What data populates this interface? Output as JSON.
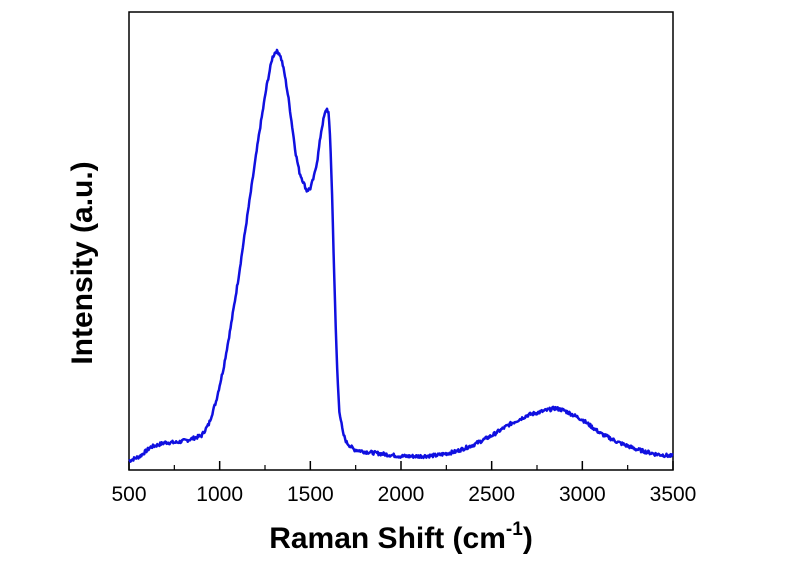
{
  "chart_data": {
    "type": "line",
    "title": "",
    "xlabel": "Raman Shift (cm",
    "xlabel_sup": "-1",
    "xlabel_suffix": ")",
    "ylabel": "Intensity (a.u.)",
    "xlim": [
      500,
      3500
    ],
    "ylim": [
      0,
      1.0
    ],
    "x_ticks": [
      500,
      1000,
      1500,
      2000,
      2500,
      3000,
      3500
    ],
    "x_tick_labels": [
      "500",
      "1000",
      "1500",
      "2000",
      "2500",
      "3000",
      "3500"
    ],
    "y_tick_labels_shown": false,
    "grid": false,
    "line_color": "#1010e0",
    "series": [
      {
        "x": [
          500,
          560,
          620,
          660,
          700,
          760,
          820,
          860,
          900,
          940,
          980,
          1020,
          1060,
          1100,
          1140,
          1180,
          1220,
          1260,
          1290,
          1310,
          1330,
          1345,
          1360,
          1380,
          1400,
          1420,
          1440,
          1460,
          1480,
          1500,
          1520,
          1540,
          1560,
          1575,
          1590,
          1600,
          1610,
          1620,
          1630,
          1640,
          1650,
          1660,
          1680,
          1700,
          1740,
          1800,
          1900,
          2000,
          2100,
          2200,
          2300,
          2400,
          2500,
          2600,
          2700,
          2800,
          2850,
          2900,
          3000,
          3100,
          3200,
          3300,
          3400,
          3500
        ],
        "y": [
          0.02,
          0.03,
          0.05,
          0.055,
          0.06,
          0.06,
          0.065,
          0.07,
          0.075,
          0.1,
          0.15,
          0.22,
          0.31,
          0.41,
          0.52,
          0.63,
          0.74,
          0.84,
          0.9,
          0.915,
          0.91,
          0.89,
          0.86,
          0.81,
          0.75,
          0.69,
          0.65,
          0.63,
          0.61,
          0.615,
          0.64,
          0.68,
          0.74,
          0.77,
          0.79,
          0.78,
          0.72,
          0.6,
          0.45,
          0.31,
          0.2,
          0.13,
          0.08,
          0.06,
          0.045,
          0.04,
          0.035,
          0.03,
          0.03,
          0.032,
          0.04,
          0.055,
          0.075,
          0.1,
          0.12,
          0.13,
          0.135,
          0.13,
          0.11,
          0.08,
          0.06,
          0.045,
          0.035,
          0.03
        ]
      }
    ]
  }
}
